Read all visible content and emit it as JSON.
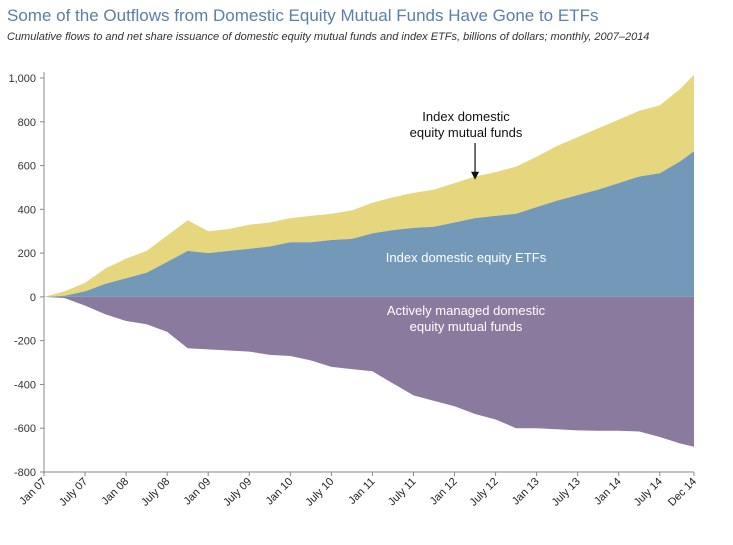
{
  "title": "Some of the Outflows from Domestic Equity Mutual Funds Have Gone to ETFs",
  "subtitle": "Cumulative flows to and net share issuance of domestic equity mutual funds and index ETFs, billions of dollars; monthly, 2007–2014",
  "colors": {
    "index_mutual_funds": "#e6d77e",
    "index_etfs": "#7499b8",
    "active_mutual_funds": "#8a7a9e",
    "axis": "#888888"
  },
  "chart_data": {
    "type": "area",
    "ylim": [
      -800,
      1000
    ],
    "yticks": [
      1000,
      800,
      600,
      400,
      200,
      0,
      -200,
      -400,
      -600,
      -800
    ],
    "ytick_labels": [
      "1,000",
      "800",
      "600",
      "400",
      "200",
      "0",
      "-200",
      "-400",
      "-600",
      "-800"
    ],
    "xlim": [
      0,
      95
    ],
    "xtick_positions": [
      0,
      6,
      12,
      18,
      24,
      30,
      36,
      42,
      48,
      54,
      60,
      66,
      72,
      78,
      84,
      90,
      95
    ],
    "xtick_labels": [
      "Jan 07",
      "July 07",
      "Jan 08",
      "July 08",
      "Jan 09",
      "July 09",
      "Jan 10",
      "July 10",
      "Jan 11",
      "July 11",
      "Jan 12",
      "July 12",
      "Jan 13",
      "July 13",
      "Jan 14",
      "July 14",
      "Dec 14"
    ],
    "x": [
      0,
      3,
      6,
      9,
      12,
      15,
      18,
      21,
      24,
      27,
      30,
      33,
      36,
      39,
      42,
      45,
      48,
      51,
      54,
      57,
      60,
      63,
      66,
      69,
      72,
      75,
      78,
      81,
      84,
      87,
      90,
      93,
      95
    ],
    "series": [
      {
        "name": "Index domestic equity ETFs",
        "color_key": "index_etfs",
        "values": [
          0,
          5,
          25,
          60,
          85,
          110,
          160,
          210,
          200,
          210,
          220,
          230,
          250,
          250,
          260,
          265,
          290,
          305,
          315,
          320,
          340,
          360,
          370,
          380,
          410,
          440,
          465,
          490,
          520,
          550,
          565,
          620,
          665
        ]
      },
      {
        "name": "Index domestic equity mutual funds",
        "color_key": "index_mutual_funds",
        "values": [
          0,
          20,
          40,
          70,
          90,
          100,
          120,
          140,
          100,
          100,
          110,
          110,
          110,
          120,
          120,
          130,
          140,
          150,
          160,
          170,
          180,
          190,
          200,
          215,
          230,
          250,
          265,
          280,
          290,
          300,
          310,
          330,
          350
        ]
      },
      {
        "name": "Actively managed domestic equity mutual funds",
        "color_key": "active_mutual_funds",
        "values": [
          0,
          -5,
          -40,
          -80,
          -110,
          -125,
          -160,
          -235,
          -240,
          -245,
          -250,
          -265,
          -270,
          -290,
          -320,
          -330,
          -340,
          -395,
          -450,
          -475,
          -500,
          -535,
          -560,
          -600,
          -600,
          -605,
          -610,
          -612,
          -612,
          -615,
          -640,
          -670,
          -685
        ]
      }
    ],
    "annotations": {
      "index_mf": [
        "Index domestic",
        "equity mutual funds"
      ],
      "etf": [
        "Index domestic equity ETFs"
      ],
      "active": [
        "Actively managed domestic",
        "equity mutual funds"
      ]
    },
    "arrow_at": {
      "x": 63,
      "y": 535
    }
  }
}
